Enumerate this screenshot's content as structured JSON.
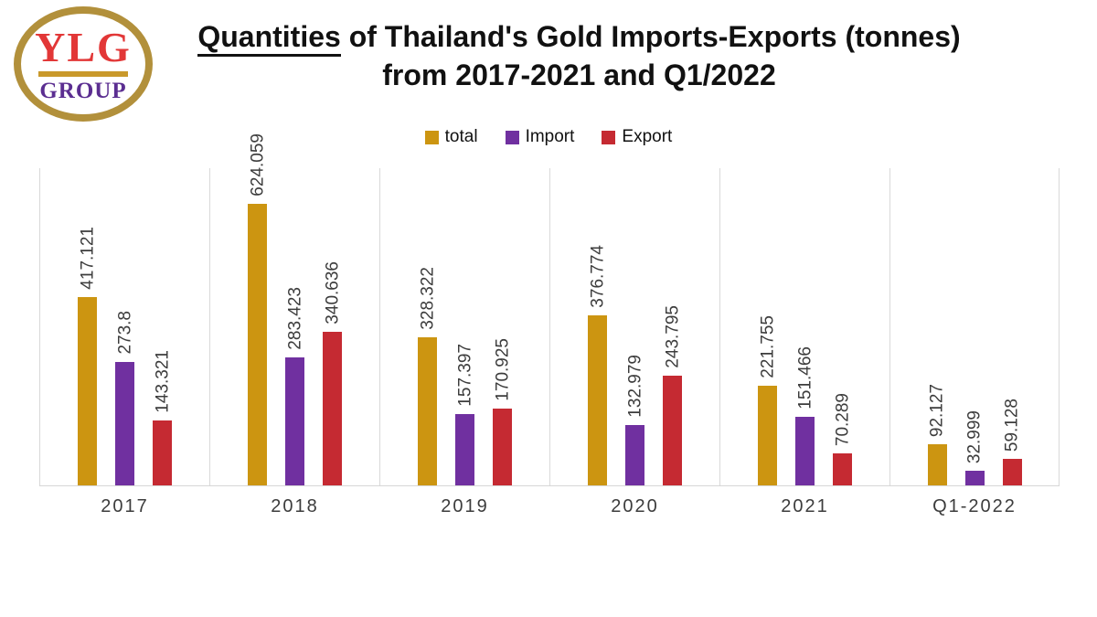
{
  "logo": {
    "line1": "YLG",
    "line2": "GROUP"
  },
  "title": {
    "underlined_word": "Quantities",
    "line1_rest": " of Thailand's Gold Imports-Exports (tonnes)",
    "line2": "from 2017-2021 and Q1/2022"
  },
  "colors": {
    "total": "#cc9511",
    "import": "#7030a0",
    "export": "#c52a32",
    "gridline": "#d9d9d9",
    "logo_ring_gold": "#b2903b",
    "logo_red": "#e23737",
    "logo_purple": "#5b2e91"
  },
  "chart_data": {
    "type": "bar",
    "title": "Quantities of Thailand's Gold Imports-Exports (tonnes) from 2017-2021 and Q1/2022",
    "categories": [
      "2017",
      "2018",
      "2019",
      "2020",
      "2021",
      "Q1-2022"
    ],
    "series": [
      {
        "name": "total",
        "color": "#cc9511",
        "values": [
          417.121,
          624.059,
          328.322,
          376.774,
          221.755,
          92.127
        ]
      },
      {
        "name": "Import",
        "color": "#7030a0",
        "values": [
          273.8,
          283.423,
          157.397,
          132.979,
          151.466,
          32.999
        ]
      },
      {
        "name": "Export",
        "color": "#c52a32",
        "values": [
          143.321,
          340.636,
          170.925,
          243.795,
          70.289,
          59.128
        ]
      }
    ],
    "xlabel": "",
    "ylabel": "",
    "ylim": [
      0,
      705
    ],
    "grid": "vertical-category-boundaries",
    "legend_position": "top-center",
    "value_labels": "rotated-90-above-bars"
  }
}
